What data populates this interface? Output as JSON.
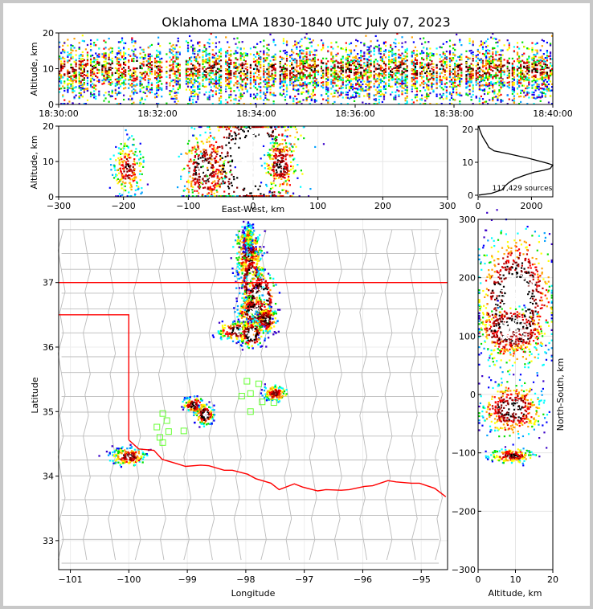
{
  "title": "Oklahoma LMA 1830-1840 UTC July 07, 2023",
  "colors": {
    "source_ramp": [
      "#3a00c8",
      "#0000ff",
      "#00a0ff",
      "#00ffff",
      "#00e000",
      "#ffff00",
      "#ffa000",
      "#ff0000",
      "#c00000",
      "#800000",
      "#000000",
      "#ffffff"
    ],
    "state_border": "#ff0000",
    "county_lines": "#bbbbbb",
    "station_marker": "#66ff33"
  },
  "chart_data": [
    {
      "id": "time-height",
      "type": "heatmap",
      "ylabel": "Altitude, km",
      "ylim": [
        0,
        20
      ],
      "y_ticks": [
        "0",
        "10",
        "20"
      ],
      "x_ticks": [
        "18:30:00",
        "18:32:00",
        "18:34:00",
        "18:36:00",
        "18:38:00",
        "18:40:00"
      ]
    },
    {
      "id": "ew-height",
      "type": "heatmap",
      "xlabel": "East-West, km",
      "ylabel": "Altitude, km",
      "xlim": [
        -300,
        300
      ],
      "ylim": [
        0,
        20
      ],
      "x_ticks": [
        "−300",
        "−200",
        "−100",
        "0",
        "100",
        "200",
        "300"
      ],
      "y_ticks": [
        "0",
        "10",
        "20"
      ],
      "clusters": [
        {
          "x": -193,
          "z": 8,
          "w": 12,
          "h": 4,
          "level": 0.8
        },
        {
          "x": -75,
          "z": 8,
          "w": 18,
          "h": 5,
          "level": 1.0
        },
        {
          "x": 0,
          "z": 10,
          "w": 38,
          "h": 9,
          "level": 1.3
        },
        {
          "x": 42,
          "z": 9,
          "w": 12,
          "h": 4,
          "level": 0.9
        }
      ]
    },
    {
      "id": "altitude-histogram",
      "type": "line",
      "xlim": [
        0,
        2800
      ],
      "ylim": [
        0,
        20
      ],
      "x_ticks": [
        "0",
        "2000"
      ],
      "y_ticks": [
        "0",
        "10",
        "20"
      ],
      "annotation": "117,429 sources",
      "profile_z": [
        0.5,
        1,
        2,
        3,
        4,
        5,
        6,
        7,
        7.5,
        8,
        8.5,
        9,
        9.5,
        10,
        11,
        12,
        13,
        14,
        15,
        16,
        17,
        18,
        19,
        20
      ],
      "profile_count": [
        30,
        500,
        900,
        1000,
        1150,
        1350,
        1700,
        2100,
        2450,
        2700,
        2750,
        2820,
        2600,
        2350,
        1850,
        1250,
        600,
        400,
        330,
        250,
        170,
        110,
        60,
        20
      ]
    },
    {
      "id": "plan-view",
      "type": "scatter",
      "xlabel": "Longitude",
      "ylabel": "Latitude",
      "xlim": [
        -101.2,
        -94.55
      ],
      "ylim": [
        32.55,
        37.98
      ],
      "x_ticks": [
        "−101",
        "−100",
        "−99",
        "−98",
        "−97",
        "−96",
        "−95"
      ],
      "y_ticks": [
        "33",
        "34",
        "35",
        "36",
        "37"
      ],
      "clusters": [
        {
          "lon": -97.95,
          "lat": 37.45,
          "w": 0.12,
          "h": 0.22,
          "level": 0.9
        },
        {
          "lon": -97.9,
          "lat": 37.0,
          "w": 0.1,
          "h": 0.25,
          "level": 1.2
        },
        {
          "lon": -97.75,
          "lat": 36.75,
          "w": 0.13,
          "h": 0.2,
          "level": 1.3
        },
        {
          "lon": -97.85,
          "lat": 36.55,
          "w": 0.14,
          "h": 0.12,
          "level": 1.1
        },
        {
          "lon": -97.65,
          "lat": 36.42,
          "w": 0.1,
          "h": 0.1,
          "level": 1.0
        },
        {
          "lon": -98.1,
          "lat": 36.25,
          "w": 0.2,
          "h": 0.07,
          "level": 1.1
        },
        {
          "lon": -97.9,
          "lat": 36.2,
          "w": 0.1,
          "h": 0.1,
          "level": 1.2
        },
        {
          "lon": -97.95,
          "lat": 37.72,
          "w": 0.04,
          "h": 0.1,
          "level": 0.6
        },
        {
          "lon": -97.5,
          "lat": 35.28,
          "w": 0.1,
          "h": 0.06,
          "level": 0.9
        },
        {
          "lon": -98.88,
          "lat": 35.1,
          "w": 0.09,
          "h": 0.06,
          "level": 1.0
        },
        {
          "lon": -98.7,
          "lat": 34.95,
          "w": 0.08,
          "h": 0.08,
          "level": 1.1
        },
        {
          "lon": -100.0,
          "lat": 34.3,
          "w": 0.16,
          "h": 0.07,
          "level": 0.9
        }
      ],
      "stations": [
        {
          "lon": -97.98,
          "lat": 35.47
        },
        {
          "lon": -97.78,
          "lat": 35.43
        },
        {
          "lon": -98.07,
          "lat": 35.24
        },
        {
          "lon": -97.92,
          "lat": 35.28
        },
        {
          "lon": -97.72,
          "lat": 35.15
        },
        {
          "lon": -97.52,
          "lat": 35.14
        },
        {
          "lon": -97.92,
          "lat": 35.0
        },
        {
          "lon": -99.42,
          "lat": 34.97
        },
        {
          "lon": -99.35,
          "lat": 34.86
        },
        {
          "lon": -99.52,
          "lat": 34.76
        },
        {
          "lon": -99.32,
          "lat": 34.69
        },
        {
          "lon": -99.06,
          "lat": 34.7
        },
        {
          "lon": -99.47,
          "lat": 34.6
        },
        {
          "lon": -99.42,
          "lat": 34.52
        }
      ]
    },
    {
      "id": "ns-height",
      "type": "heatmap",
      "xlabel": "Altitude, km",
      "ylabel": "North-South, km",
      "xlim": [
        0,
        20
      ],
      "ylim": [
        -300,
        300
      ],
      "x_ticks": [
        "0",
        "10",
        "20"
      ],
      "y_ticks": [
        "−300",
        "−200",
        "−100",
        "0",
        "100",
        "200",
        "300"
      ],
      "clusters": [
        {
          "z": 10,
          "y": 160,
          "w": 5,
          "h": 55,
          "level": 1.2
        },
        {
          "z": 9,
          "y": 110,
          "w": 4,
          "h": 18,
          "level": 1.3
        },
        {
          "z": 9,
          "y": -25,
          "w": 4,
          "h": 22,
          "level": 1.0
        },
        {
          "z": 9,
          "y": -105,
          "w": 3,
          "h": 6,
          "level": 0.9
        }
      ]
    }
  ]
}
